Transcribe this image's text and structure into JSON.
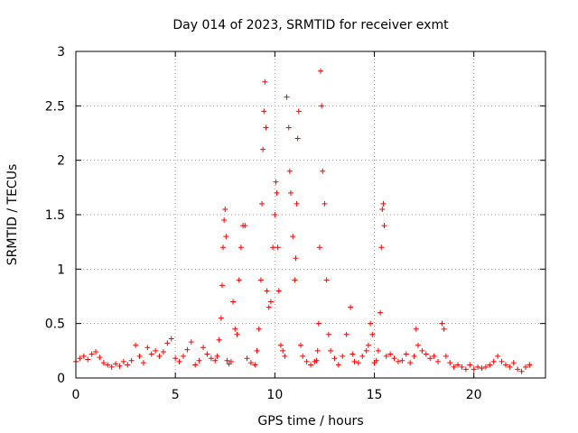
{
  "chart_data": {
    "type": "scatter",
    "title": "Day 014 of 2023, SRMTID for receiver exmt",
    "xlabel": "GPS time / hours",
    "ylabel": "SRMTID / TECUs",
    "xlim": [
      0,
      23.6
    ],
    "ylim": [
      0,
      3
    ],
    "xticks": [
      0,
      5,
      10,
      15,
      20
    ],
    "xtick_labels": [
      "0",
      "5",
      "10",
      "15",
      "20"
    ],
    "yticks": [
      0,
      0.5,
      1,
      1.5,
      2,
      2.5,
      3
    ],
    "ytick_labels": [
      "0",
      "0.5",
      "1",
      "1.5",
      "2",
      "2.5",
      "3"
    ],
    "grid": true,
    "marker": "+",
    "marker_color": "#ff0000",
    "series": [
      {
        "name": "SRMTID exmt",
        "x": [
          0.0,
          0.2,
          0.4,
          0.6,
          0.8,
          1.0,
          1.2,
          1.4,
          1.6,
          1.8,
          2.0,
          2.2,
          2.4,
          2.6,
          2.8,
          3.0,
          3.2,
          3.4,
          3.6,
          3.8,
          4.0,
          4.2,
          4.4,
          4.6,
          4.8,
          5.0,
          5.2,
          5.4,
          5.6,
          5.8,
          6.0,
          6.2,
          6.4,
          6.6,
          6.8,
          7.0,
          7.1,
          7.2,
          7.3,
          7.35,
          7.4,
          7.45,
          7.5,
          7.55,
          7.6,
          7.7,
          7.8,
          7.9,
          8.0,
          8.1,
          8.2,
          8.3,
          8.4,
          8.5,
          8.6,
          8.8,
          9.0,
          9.1,
          9.2,
          9.3,
          9.35,
          9.4,
          9.45,
          9.5,
          9.55,
          9.6,
          9.7,
          9.8,
          9.9,
          10.0,
          10.05,
          10.1,
          10.15,
          10.2,
          10.3,
          10.4,
          10.5,
          10.6,
          10.7,
          10.75,
          10.8,
          10.9,
          11.0,
          11.05,
          11.1,
          11.15,
          11.2,
          11.3,
          11.4,
          11.6,
          11.8,
          12.0,
          12.1,
          12.15,
          12.2,
          12.25,
          12.3,
          12.35,
          12.4,
          12.5,
          12.6,
          12.7,
          12.8,
          13.0,
          13.2,
          13.4,
          13.6,
          13.8,
          13.9,
          14.0,
          14.2,
          14.4,
          14.6,
          14.7,
          14.8,
          14.9,
          15.0,
          15.1,
          15.2,
          15.3,
          15.35,
          15.4,
          15.45,
          15.5,
          15.6,
          15.8,
          16.0,
          16.2,
          16.4,
          16.6,
          16.8,
          17.0,
          17.1,
          17.2,
          17.4,
          17.6,
          17.8,
          18.0,
          18.2,
          18.4,
          18.5,
          18.6,
          18.8,
          19.0,
          19.2,
          19.4,
          19.6,
          19.8,
          20.0,
          20.2,
          20.4,
          20.6,
          20.8,
          21.0,
          21.2,
          21.4,
          21.6,
          21.8,
          22.0,
          22.2,
          22.4,
          22.6,
          22.8
        ],
        "y": [
          0.15,
          0.18,
          0.2,
          0.17,
          0.22,
          0.24,
          0.19,
          0.14,
          0.12,
          0.1,
          0.13,
          0.11,
          0.15,
          0.12,
          0.16,
          0.3,
          0.2,
          0.14,
          0.28,
          0.22,
          0.25,
          0.2,
          0.24,
          0.32,
          0.36,
          0.18,
          0.15,
          0.2,
          0.26,
          0.33,
          0.12,
          0.16,
          0.28,
          0.22,
          0.18,
          0.16,
          0.2,
          0.35,
          0.55,
          0.85,
          1.2,
          1.45,
          1.55,
          1.3,
          0.16,
          0.13,
          0.15,
          0.7,
          0.45,
          0.4,
          0.9,
          1.2,
          1.4,
          1.4,
          0.18,
          0.14,
          0.12,
          0.25,
          0.45,
          0.9,
          1.6,
          2.1,
          2.45,
          2.72,
          2.3,
          0.8,
          0.65,
          0.7,
          1.2,
          1.5,
          1.8,
          1.7,
          1.2,
          0.8,
          0.3,
          0.25,
          0.2,
          2.58,
          2.3,
          1.9,
          1.7,
          1.3,
          0.9,
          1.1,
          1.6,
          2.2,
          2.45,
          0.3,
          0.2,
          0.15,
          0.12,
          0.15,
          0.16,
          0.25,
          0.5,
          1.2,
          2.82,
          2.5,
          1.9,
          1.6,
          0.9,
          0.4,
          0.25,
          0.18,
          0.12,
          0.2,
          0.4,
          0.65,
          0.22,
          0.15,
          0.14,
          0.2,
          0.25,
          0.3,
          0.5,
          0.4,
          0.14,
          0.16,
          0.25,
          0.6,
          1.2,
          1.55,
          1.6,
          1.4,
          0.2,
          0.22,
          0.18,
          0.15,
          0.16,
          0.22,
          0.14,
          0.2,
          0.45,
          0.3,
          0.25,
          0.22,
          0.18,
          0.2,
          0.15,
          0.5,
          0.45,
          0.2,
          0.14,
          0.1,
          0.12,
          0.1,
          0.08,
          0.12,
          0.08,
          0.1,
          0.09,
          0.1,
          0.12,
          0.15,
          0.2,
          0.15,
          0.12,
          0.1,
          0.14,
          0.08,
          0.06,
          0.1,
          0.12
        ]
      }
    ]
  }
}
